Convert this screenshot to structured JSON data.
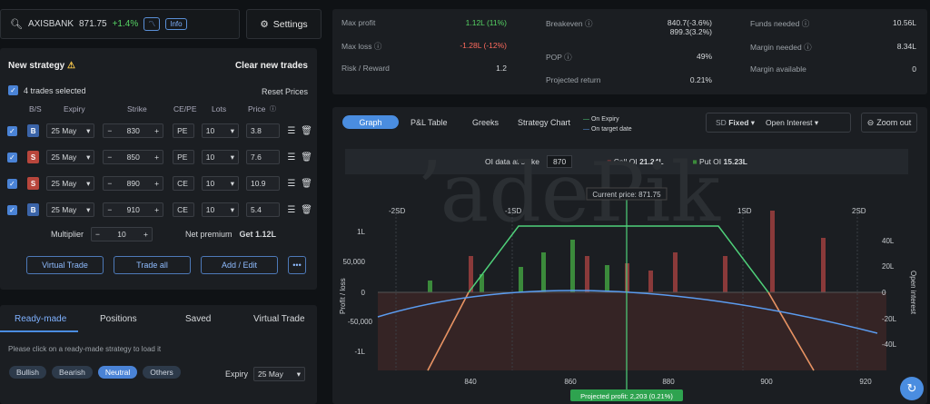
{
  "topbar": {
    "symbol": "AXISBANK",
    "price": "871.75",
    "change": "+1.4%",
    "info": "Info",
    "settings": "Settings"
  },
  "strategy": {
    "title": "New strategy",
    "clear": "Clear new trades",
    "selected": "4 trades selected",
    "reset": "Reset Prices",
    "cols": [
      "B/S",
      "Expiry",
      "Strike",
      "CE/PE",
      "Lots",
      "Price"
    ],
    "trades": [
      {
        "bs": "B",
        "expiry": "25 May",
        "strike": "830",
        "type": "PE",
        "lots": "10",
        "price": "3.8"
      },
      {
        "bs": "S",
        "expiry": "25 May",
        "strike": "850",
        "type": "PE",
        "lots": "10",
        "price": "7.6"
      },
      {
        "bs": "S",
        "expiry": "25 May",
        "strike": "890",
        "type": "CE",
        "lots": "10",
        "price": "10.9"
      },
      {
        "bs": "B",
        "expiry": "25 May",
        "strike": "910",
        "type": "CE",
        "lots": "10",
        "price": "5.4"
      }
    ],
    "multiplier_label": "Multiplier",
    "multiplier": "10",
    "premium_label": "Net premium",
    "premium": "Get 1.12L",
    "buttons": {
      "virtual": "Virtual Trade",
      "all": "Trade all",
      "edit": "Add / Edit"
    }
  },
  "lower": {
    "tabs": [
      "Ready-made",
      "Positions",
      "Saved",
      "Virtual Trade"
    ],
    "hint": "Please click on a ready-made strategy to load it",
    "filters": [
      "Bullish",
      "Bearish",
      "Neutral",
      "Others"
    ],
    "expiry_label": "Expiry",
    "expiry": "25 May"
  },
  "metrics": {
    "max_profit": {
      "label": "Max profit",
      "value": "1.12L (11%)"
    },
    "max_loss": {
      "label": "Max loss",
      "value": "-1.28L (-12%)"
    },
    "rr": {
      "label": "Risk / Reward",
      "value": "1.2"
    },
    "breakeven": {
      "label": "Breakeven",
      "v1": "840.7(-3.6%)",
      "v2": "899.3(3.2%)"
    },
    "pop": {
      "label": "POP",
      "value": "49%"
    },
    "proj": {
      "label": "Projected return",
      "value": "0.21%"
    },
    "funds": {
      "label": "Funds needed",
      "value": "10.56L"
    },
    "margin": {
      "label": "Margin needed",
      "value": "8.34L"
    },
    "avail": {
      "label": "Margin available",
      "value": "0"
    }
  },
  "graph": {
    "tabs": [
      "Graph",
      "P&L Table",
      "Greeks",
      "Strategy Chart"
    ],
    "legend": [
      "On Expiry",
      "On target date"
    ],
    "sd": "SD",
    "fixed": "Fixed",
    "oi": "Open Interest",
    "zoom": "Zoom out",
    "oi_label": "OI data at strike",
    "oi_strike": "870",
    "call_oi_label": "Call OI",
    "call_oi": "21.24L",
    "put_oi_label": "Put OI",
    "put_oi": "15.23L",
    "current": "Current price: 871.75",
    "projected": "Projected profit: 2,203 (0.21%)",
    "sd_labels": [
      "-2SD",
      "-1SD",
      "1SD",
      "2SD"
    ],
    "y_left": [
      "1L",
      "50,000",
      "0",
      "-50,000",
      "-1L"
    ],
    "y_right": [
      "40L",
      "20L",
      "0",
      "-20L",
      "-40L"
    ],
    "y_left_title": "Profit / loss",
    "y_right_title": "Open interest",
    "x_ticks": [
      "840",
      "860",
      "880",
      "900",
      "920"
    ],
    "watermark": "ʼadePik",
    "colors": {
      "expiry": "#4fd17a",
      "target": "#5b9cf0",
      "call": "#8a3a3a",
      "put": "#3b8a3b",
      "accent": "#4a8de0"
    }
  }
}
